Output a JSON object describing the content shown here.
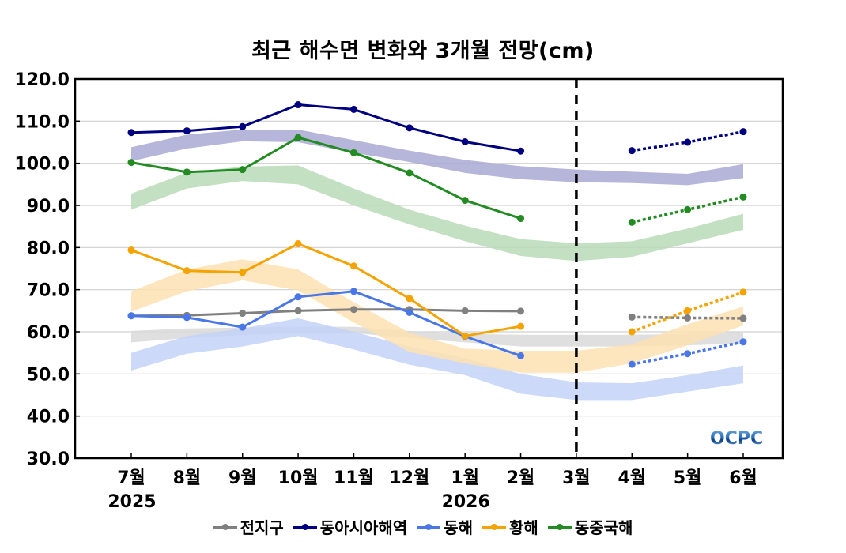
{
  "chart_data": {
    "type": "line",
    "title": "최근 해수면 변화와 3개월 전망(cm)",
    "xlabel": "",
    "ylabel": "",
    "ylim": [
      30,
      120
    ],
    "yticks": [
      30,
      40,
      50,
      60,
      70,
      80,
      90,
      100,
      110,
      120
    ],
    "ytick_labels": [
      "30.0",
      "40.0",
      "50.0",
      "60.0",
      "70.0",
      "80.0",
      "90.0",
      "100.0",
      "110.0",
      "120.0"
    ],
    "categories": [
      "7월",
      "8월",
      "9월",
      "10월",
      "11월",
      "12월",
      "1월",
      "2월",
      "3월",
      "4월",
      "5월",
      "6월"
    ],
    "year_labels": [
      {
        "category": "7월",
        "label": "2025"
      },
      {
        "category": "1월",
        "label": "2026"
      }
    ],
    "grid": true,
    "divider_after_category": "3월",
    "legend_position": "bottom",
    "watermark": "OCPC",
    "series": [
      {
        "name": "전지구",
        "color": "#808080",
        "band_color": "#d9d9d9",
        "observed": [
          63.8,
          63.9,
          64.4,
          65.0,
          65.3,
          65.3,
          65.0,
          64.9,
          null,
          null,
          null,
          null
        ],
        "forecast": [
          null,
          null,
          null,
          null,
          null,
          null,
          null,
          null,
          null,
          63.5,
          63.3,
          63.2
        ],
        "band_lower": [
          57.5,
          58.5,
          59.2,
          59.7,
          59.7,
          58.5,
          57.5,
          56.5,
          56.5,
          56.5,
          56.8,
          57.2
        ],
        "band_upper": [
          60.2,
          60.8,
          61.0,
          61.2,
          61.2,
          60.2,
          59.5,
          59.3,
          59.3,
          59.3,
          59.5,
          60.0
        ]
      },
      {
        "name": "동아시아해역",
        "color": "#000080",
        "band_color": "#a9a9d4",
        "observed": [
          107.3,
          107.7,
          108.7,
          113.9,
          112.8,
          108.4,
          105.1,
          102.9,
          null,
          null,
          null,
          null
        ],
        "forecast": [
          null,
          null,
          null,
          null,
          null,
          null,
          null,
          null,
          null,
          103.0,
          105.0,
          107.5
        ],
        "band_lower": [
          100.5,
          103.5,
          105.2,
          105.0,
          102.5,
          100.3,
          97.7,
          96.2,
          95.5,
          95.3,
          94.8,
          96.5
        ],
        "band_upper": [
          103.8,
          106.8,
          108.0,
          108.0,
          105.5,
          103.0,
          100.8,
          99.3,
          98.5,
          98.0,
          97.5,
          99.8
        ]
      },
      {
        "name": "동해",
        "color": "#4a77e8",
        "band_color": "#c3d2f8",
        "observed": [
          63.8,
          63.4,
          61.1,
          68.3,
          69.6,
          64.6,
          58.9,
          54.3,
          null,
          null,
          null,
          null
        ],
        "forecast": [
          null,
          null,
          null,
          null,
          null,
          null,
          null,
          null,
          null,
          52.3,
          54.8,
          57.6
        ],
        "band_lower": [
          50.8,
          54.8,
          56.5,
          59.0,
          55.8,
          52.2,
          49.7,
          45.3,
          43.8,
          43.8,
          45.8,
          47.8
        ],
        "band_upper": [
          55.0,
          59.0,
          60.8,
          63.2,
          60.0,
          56.5,
          53.7,
          50.0,
          48.0,
          47.8,
          49.7,
          52.0
        ]
      },
      {
        "name": "황해",
        "color": "#f5a300",
        "band_color": "#fde2b2",
        "observed": [
          79.4,
          74.5,
          74.1,
          80.9,
          75.6,
          67.9,
          59.0,
          61.3,
          null,
          null,
          null,
          null
        ],
        "forecast": [
          null,
          null,
          null,
          null,
          null,
          null,
          null,
          null,
          null,
          60.0,
          65.0,
          69.4
        ],
        "band_lower": [
          64.8,
          69.6,
          72.2,
          69.8,
          62.2,
          55.2,
          52.5,
          50.3,
          50.3,
          52.5,
          56.8,
          61.5
        ],
        "band_upper": [
          69.6,
          74.8,
          77.2,
          74.8,
          67.0,
          59.8,
          56.0,
          55.5,
          55.5,
          57.0,
          61.8,
          66.0
        ]
      },
      {
        "name": "동중국해",
        "color": "#228b22",
        "band_color": "#b8dbb8",
        "observed": [
          100.2,
          97.9,
          98.5,
          106.1,
          102.5,
          97.7,
          91.2,
          86.9,
          null,
          null,
          null,
          null
        ],
        "forecast": [
          null,
          null,
          null,
          null,
          null,
          null,
          null,
          null,
          null,
          86.0,
          89.0,
          92.0
        ],
        "band_lower": [
          89.0,
          94.0,
          95.8,
          95.0,
          90.0,
          85.5,
          81.5,
          78.0,
          76.8,
          77.8,
          81.0,
          84.2
        ],
        "band_upper": [
          92.8,
          97.8,
          99.2,
          99.5,
          94.0,
          89.0,
          85.2,
          82.0,
          81.0,
          81.5,
          84.5,
          88.0
        ]
      }
    ]
  }
}
